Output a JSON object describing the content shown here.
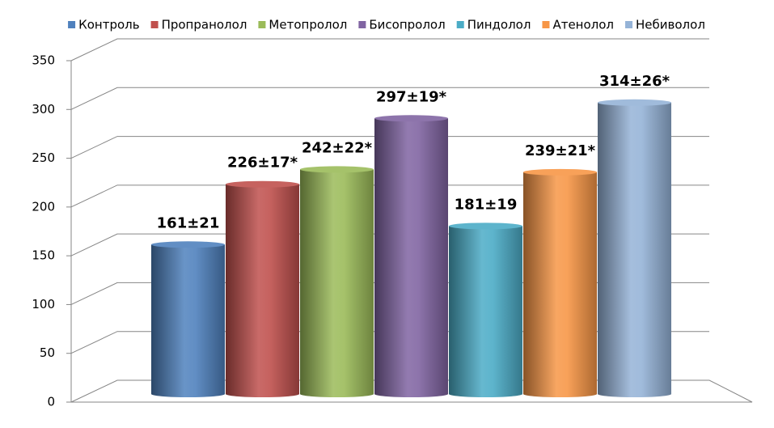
{
  "chart_data": {
    "type": "bar",
    "series": [
      {
        "name": "Контроль",
        "color": "#4f81bd",
        "values": [
          161
        ],
        "value_labels": [
          "161±21"
        ]
      },
      {
        "name": "Пропранолол",
        "color": "#c0504d",
        "values": [
          226
        ],
        "value_labels": [
          "226±17*"
        ]
      },
      {
        "name": "Метопролол",
        "color": "#9bbb59",
        "values": [
          242
        ],
        "value_labels": [
          "242±22*"
        ]
      },
      {
        "name": "Бисопролол",
        "color": "#8064a2",
        "values": [
          297
        ],
        "value_labels": [
          "297±19*"
        ]
      },
      {
        "name": "Пиндолол",
        "color": "#4bacc6",
        "values": [
          181
        ],
        "value_labels": [
          "181±19"
        ]
      },
      {
        "name": "Атенолол",
        "color": "#f79646",
        "values": [
          239
        ],
        "value_labels": [
          "239±21*"
        ]
      },
      {
        "name": "Небиволол",
        "color": "#95b3d7",
        "values": [
          314
        ],
        "value_labels": [
          "314±26*"
        ]
      }
    ],
    "ylim": [
      0,
      350
    ],
    "yticks": [
      0,
      50,
      100,
      150,
      200,
      250,
      300,
      350
    ],
    "grid": true,
    "legend": "top"
  }
}
